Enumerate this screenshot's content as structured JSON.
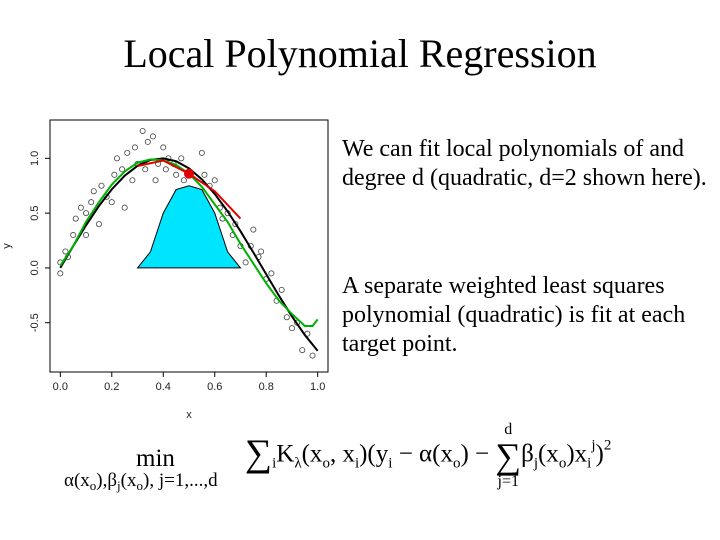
{
  "title": "Local Polynomial Regression",
  "paragraphs": [
    "We can fit local polynomials of and degree d (quadratic, d=2 shown here).",
    "A separate weighted least squares polynomial (quadratic) is fit at each target point."
  ],
  "formula": {
    "min": "min",
    "under": [
      "α(x",
      "o",
      "),β",
      "j",
      "(x",
      "o",
      "), j=1,...,d"
    ],
    "main": [
      "∑",
      "i",
      "K",
      "λ",
      "(x",
      "o",
      ", x",
      "i",
      ")(y",
      "i",
      " − α(x",
      "o",
      ") − ",
      "∑",
      "j=1",
      "d",
      "β",
      "j",
      "(x",
      "o",
      ")x",
      "i",
      "j",
      ")",
      "2"
    ]
  },
  "chart_data": {
    "type": "scatter",
    "x_label": "x",
    "y_label": "y",
    "xlim": [
      -0.04,
      1.04
    ],
    "ylim": [
      -0.95,
      1.35
    ],
    "xticks": [
      {
        "value": 0,
        "label": "0.0"
      },
      {
        "value": 0.2,
        "label": "0.2"
      },
      {
        "value": 0.4,
        "label": "0.4"
      },
      {
        "value": 0.6,
        "label": "0.6"
      },
      {
        "value": 0.8,
        "label": "0.8"
      },
      {
        "value": 1,
        "label": "1.0"
      }
    ],
    "yticks": [
      {
        "value": -0.5,
        "label": "-0.5"
      },
      {
        "value": 0,
        "label": "0.0"
      },
      {
        "value": 0.5,
        "label": "0.5"
      },
      {
        "value": 1,
        "label": "1.0"
      }
    ],
    "series": [
      {
        "type": "scatter",
        "color": "#444444",
        "x": [
          0.0,
          0.0,
          0.02,
          0.03,
          0.05,
          0.06,
          0.08,
          0.1,
          0.1,
          0.12,
          0.13,
          0.15,
          0.16,
          0.18,
          0.2,
          0.21,
          0.22,
          0.24,
          0.25,
          0.26,
          0.28,
          0.29,
          0.3,
          0.32,
          0.33,
          0.34,
          0.36,
          0.37,
          0.38,
          0.4,
          0.41,
          0.42,
          0.44,
          0.45,
          0.47,
          0.48,
          0.5,
          0.52,
          0.53,
          0.55,
          0.56,
          0.58,
          0.6,
          0.62,
          0.63,
          0.65,
          0.67,
          0.68,
          0.7,
          0.72,
          0.74,
          0.75,
          0.77,
          0.78,
          0.8,
          0.82,
          0.84,
          0.86,
          0.88,
          0.9,
          0.92,
          0.94,
          0.96,
          0.98
        ],
        "values": [
          -0.05,
          0.05,
          0.15,
          0.1,
          0.3,
          0.45,
          0.55,
          0.5,
          0.3,
          0.6,
          0.7,
          0.4,
          0.75,
          0.65,
          0.6,
          0.85,
          1.0,
          0.9,
          0.55,
          1.05,
          0.8,
          1.1,
          0.95,
          1.25,
          0.9,
          1.15,
          1.2,
          0.8,
          0.95,
          1.1,
          0.9,
          1.0,
          0.95,
          0.85,
          1.0,
          0.8,
          0.88,
          0.65,
          0.6,
          1.05,
          0.85,
          0.75,
          0.8,
          0.55,
          0.45,
          0.5,
          0.3,
          0.4,
          0.2,
          0.05,
          0.2,
          0.35,
          0.1,
          0.15,
          -0.1,
          -0.05,
          -0.3,
          -0.2,
          -0.45,
          -0.55,
          -0.5,
          -0.75,
          -0.6,
          -0.8
        ]
      },
      {
        "type": "area",
        "color": "#00e5ff",
        "x": [
          0.3,
          0.35,
          0.4,
          0.45,
          0.5,
          0.55,
          0.6,
          0.65,
          0.7
        ],
        "values": [
          0,
          0.146,
          0.5,
          0.715,
          0.75,
          0.715,
          0.5,
          0.146,
          0
        ]
      },
      {
        "type": "line",
        "color": "#000000",
        "x": [
          0,
          0.05,
          0.1,
          0.15,
          0.2,
          0.25,
          0.3,
          0.35,
          0.4,
          0.45,
          0.5,
          0.55,
          0.6,
          0.65,
          0.7,
          0.75,
          0.8,
          0.85,
          0.9,
          0.95,
          1.0
        ],
        "values": [
          0,
          0.199,
          0.389,
          0.565,
          0.717,
          0.841,
          0.932,
          0.985,
          1.0,
          0.974,
          0.909,
          0.808,
          0.675,
          0.516,
          0.335,
          0.141,
          -0.058,
          -0.256,
          -0.443,
          -0.612,
          -0.757
        ]
      },
      {
        "type": "line",
        "color": "#00b000",
        "x": [
          0,
          0.05,
          0.1,
          0.15,
          0.2,
          0.25,
          0.3,
          0.35,
          0.4,
          0.45,
          0.5,
          0.55,
          0.6,
          0.65,
          0.7,
          0.75,
          0.8,
          0.85,
          0.9,
          0.95,
          0.98,
          1.0
        ],
        "values": [
          0.02,
          0.2,
          0.42,
          0.6,
          0.76,
          0.88,
          0.96,
          0.99,
          0.98,
          0.94,
          0.86,
          0.74,
          0.58,
          0.42,
          0.22,
          0.04,
          -0.14,
          -0.3,
          -0.42,
          -0.53,
          -0.53,
          -0.47
        ]
      },
      {
        "type": "line",
        "color": "#e00000",
        "x": [
          0.3,
          0.4,
          0.5,
          0.6,
          0.7
        ],
        "values": [
          0.93,
          0.98,
          0.86,
          0.7,
          0.45
        ]
      },
      {
        "type": "point",
        "color": "#e00000",
        "x": [
          0.5
        ],
        "values": [
          0.86
        ]
      }
    ]
  }
}
